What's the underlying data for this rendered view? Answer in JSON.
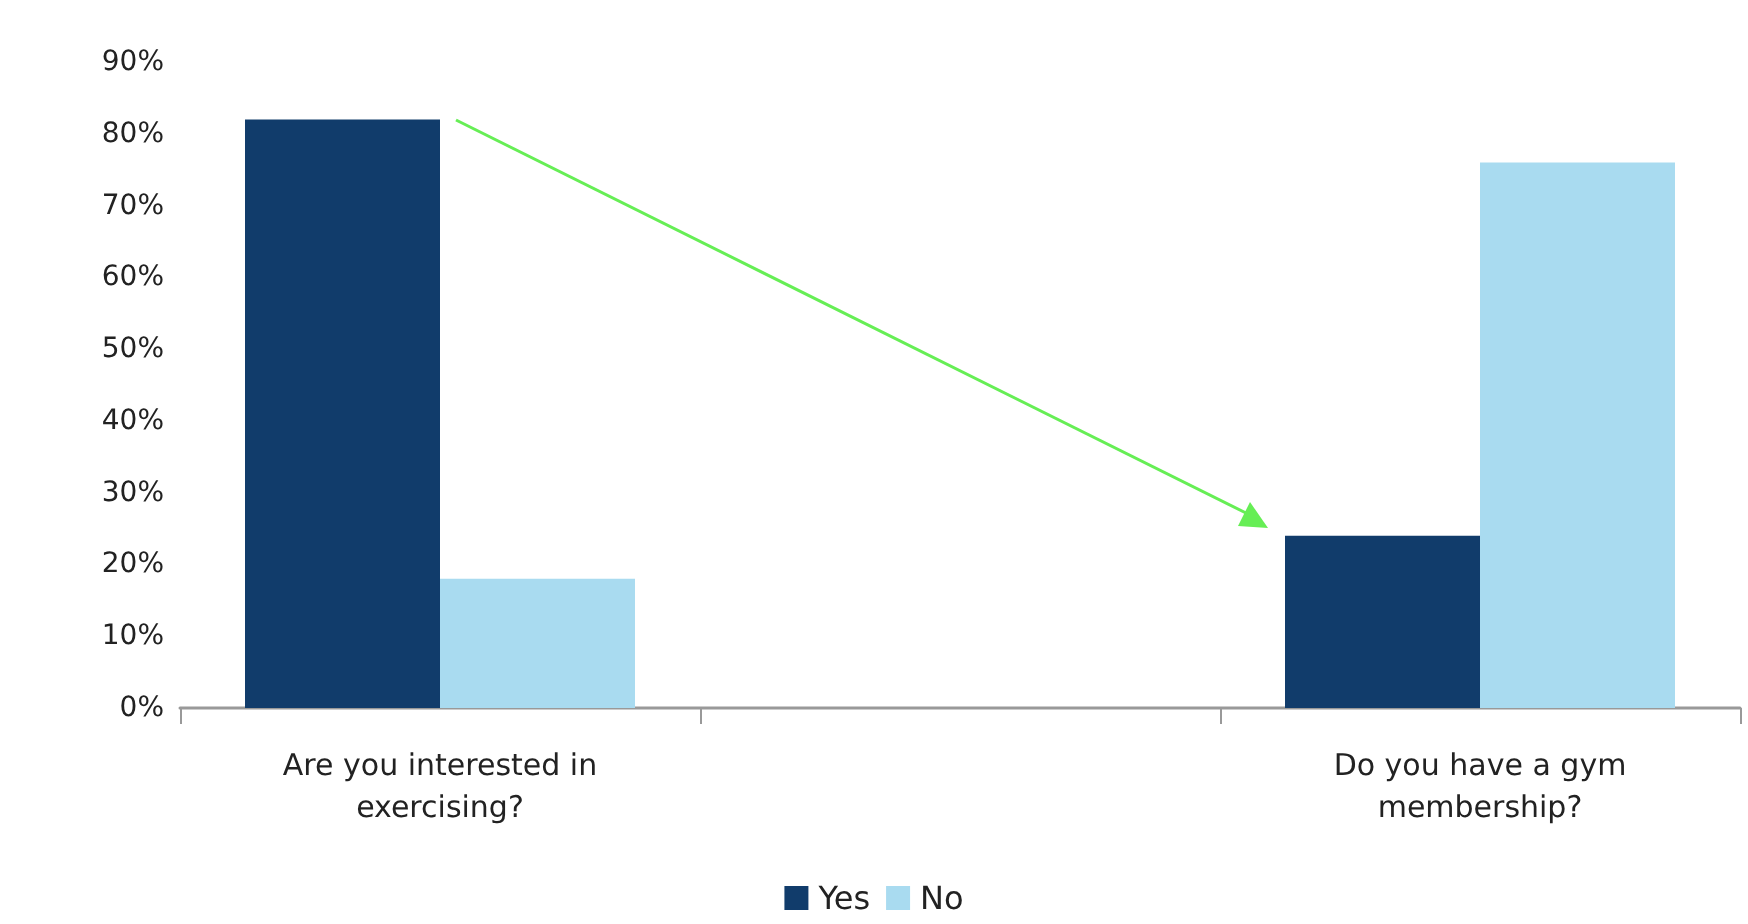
{
  "chart_data": {
    "type": "bar",
    "categories": [
      "Are you interested in exercising?",
      null,
      "Do you have a gym membership?"
    ],
    "series": [
      {
        "name": "Yes",
        "color": "#113c6b",
        "values": [
          82,
          null,
          24
        ]
      },
      {
        "name": "No",
        "color": "#a9dbf0",
        "values": [
          18,
          null,
          76
        ]
      }
    ],
    "ylim": [
      0,
      90
    ],
    "yticks": [
      {
        "value": 0,
        "label": "0%"
      },
      {
        "value": 10,
        "label": "10%"
      },
      {
        "value": 20,
        "label": "20%"
      },
      {
        "value": 30,
        "label": "30%"
      },
      {
        "value": 40,
        "label": "40%"
      },
      {
        "value": 50,
        "label": "50%"
      },
      {
        "value": 60,
        "label": "60%"
      },
      {
        "value": 70,
        "label": "70%"
      },
      {
        "value": 80,
        "label": "80%"
      },
      {
        "value": 90,
        "label": "90%"
      }
    ],
    "grid": false,
    "legend": "bottom"
  }
}
